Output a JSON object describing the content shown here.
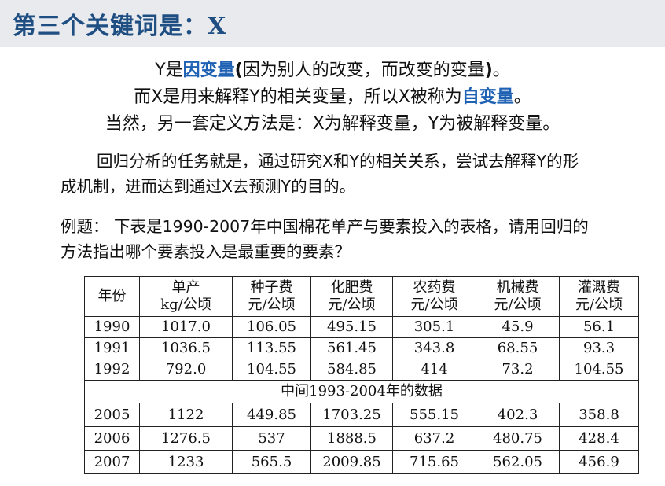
{
  "title": "第三个关键词是：X",
  "line1": {
    "a": "Y是",
    "b": "因变量",
    "c": "(",
    "d": "因为别人的改变，而改变的变量",
    "e": ")",
    "f": "。"
  },
  "line2": {
    "a": "而X是用来解释Y的相关变量，所以X被称为",
    "b": "自变量",
    "c": "。"
  },
  "line3": "当然，另一套定义方法是：X为解释变量，Y为被解释变量。",
  "para1": {
    "line1": "回归分析的任务就是，通过研究X和Y的相关关系，尝试去解释Y的形",
    "line2": "成机制，进而达到通过X去预测Y的目的。"
  },
  "para2": {
    "line1": "例题：  下表是1990-2007年中国棉花单产与要素投入的表格，请用回归的",
    "line2": "方法指出哪个要素投入是最重要的要素？"
  },
  "table": {
    "year_header": "年份",
    "headers": [
      {
        "name": "单产",
        "unit": "kg/公顷"
      },
      {
        "name": "种子费",
        "unit": "元/公顷"
      },
      {
        "name": "化肥费",
        "unit": "元/公顷"
      },
      {
        "name": "农药费",
        "unit": "元/公顷"
      },
      {
        "name": "机械费",
        "unit": "元/公顷"
      },
      {
        "name": "灌溉费",
        "unit": "元/公顷"
      }
    ],
    "rows_top": [
      [
        "1990",
        "1017.0",
        "106.05",
        "495.15",
        "305.1",
        "45.9",
        "56.1"
      ],
      [
        "1991",
        "1036.5",
        "113.55",
        "561.45",
        "343.8",
        "68.55",
        "93.3"
      ],
      [
        "1992",
        "792.0",
        "104.55",
        "584.85",
        "414",
        "73.2",
        "104.55"
      ]
    ],
    "middle_note": "中间1993-2004年的数据",
    "rows_bottom": [
      [
        "2005",
        "1122",
        "449.85",
        "1703.25",
        "555.15",
        "402.3",
        "358.8"
      ],
      [
        "2006",
        "1276.5",
        "537",
        "1888.5",
        "637.2",
        "480.75",
        "428.4"
      ],
      [
        "2007",
        "1233",
        "565.5",
        "2009.85",
        "715.65",
        "562.05",
        "456.9"
      ]
    ]
  },
  "colors": {
    "title": "#1f4f82",
    "highlight": "#1f62b3",
    "title_bar": "#e9eaee"
  }
}
